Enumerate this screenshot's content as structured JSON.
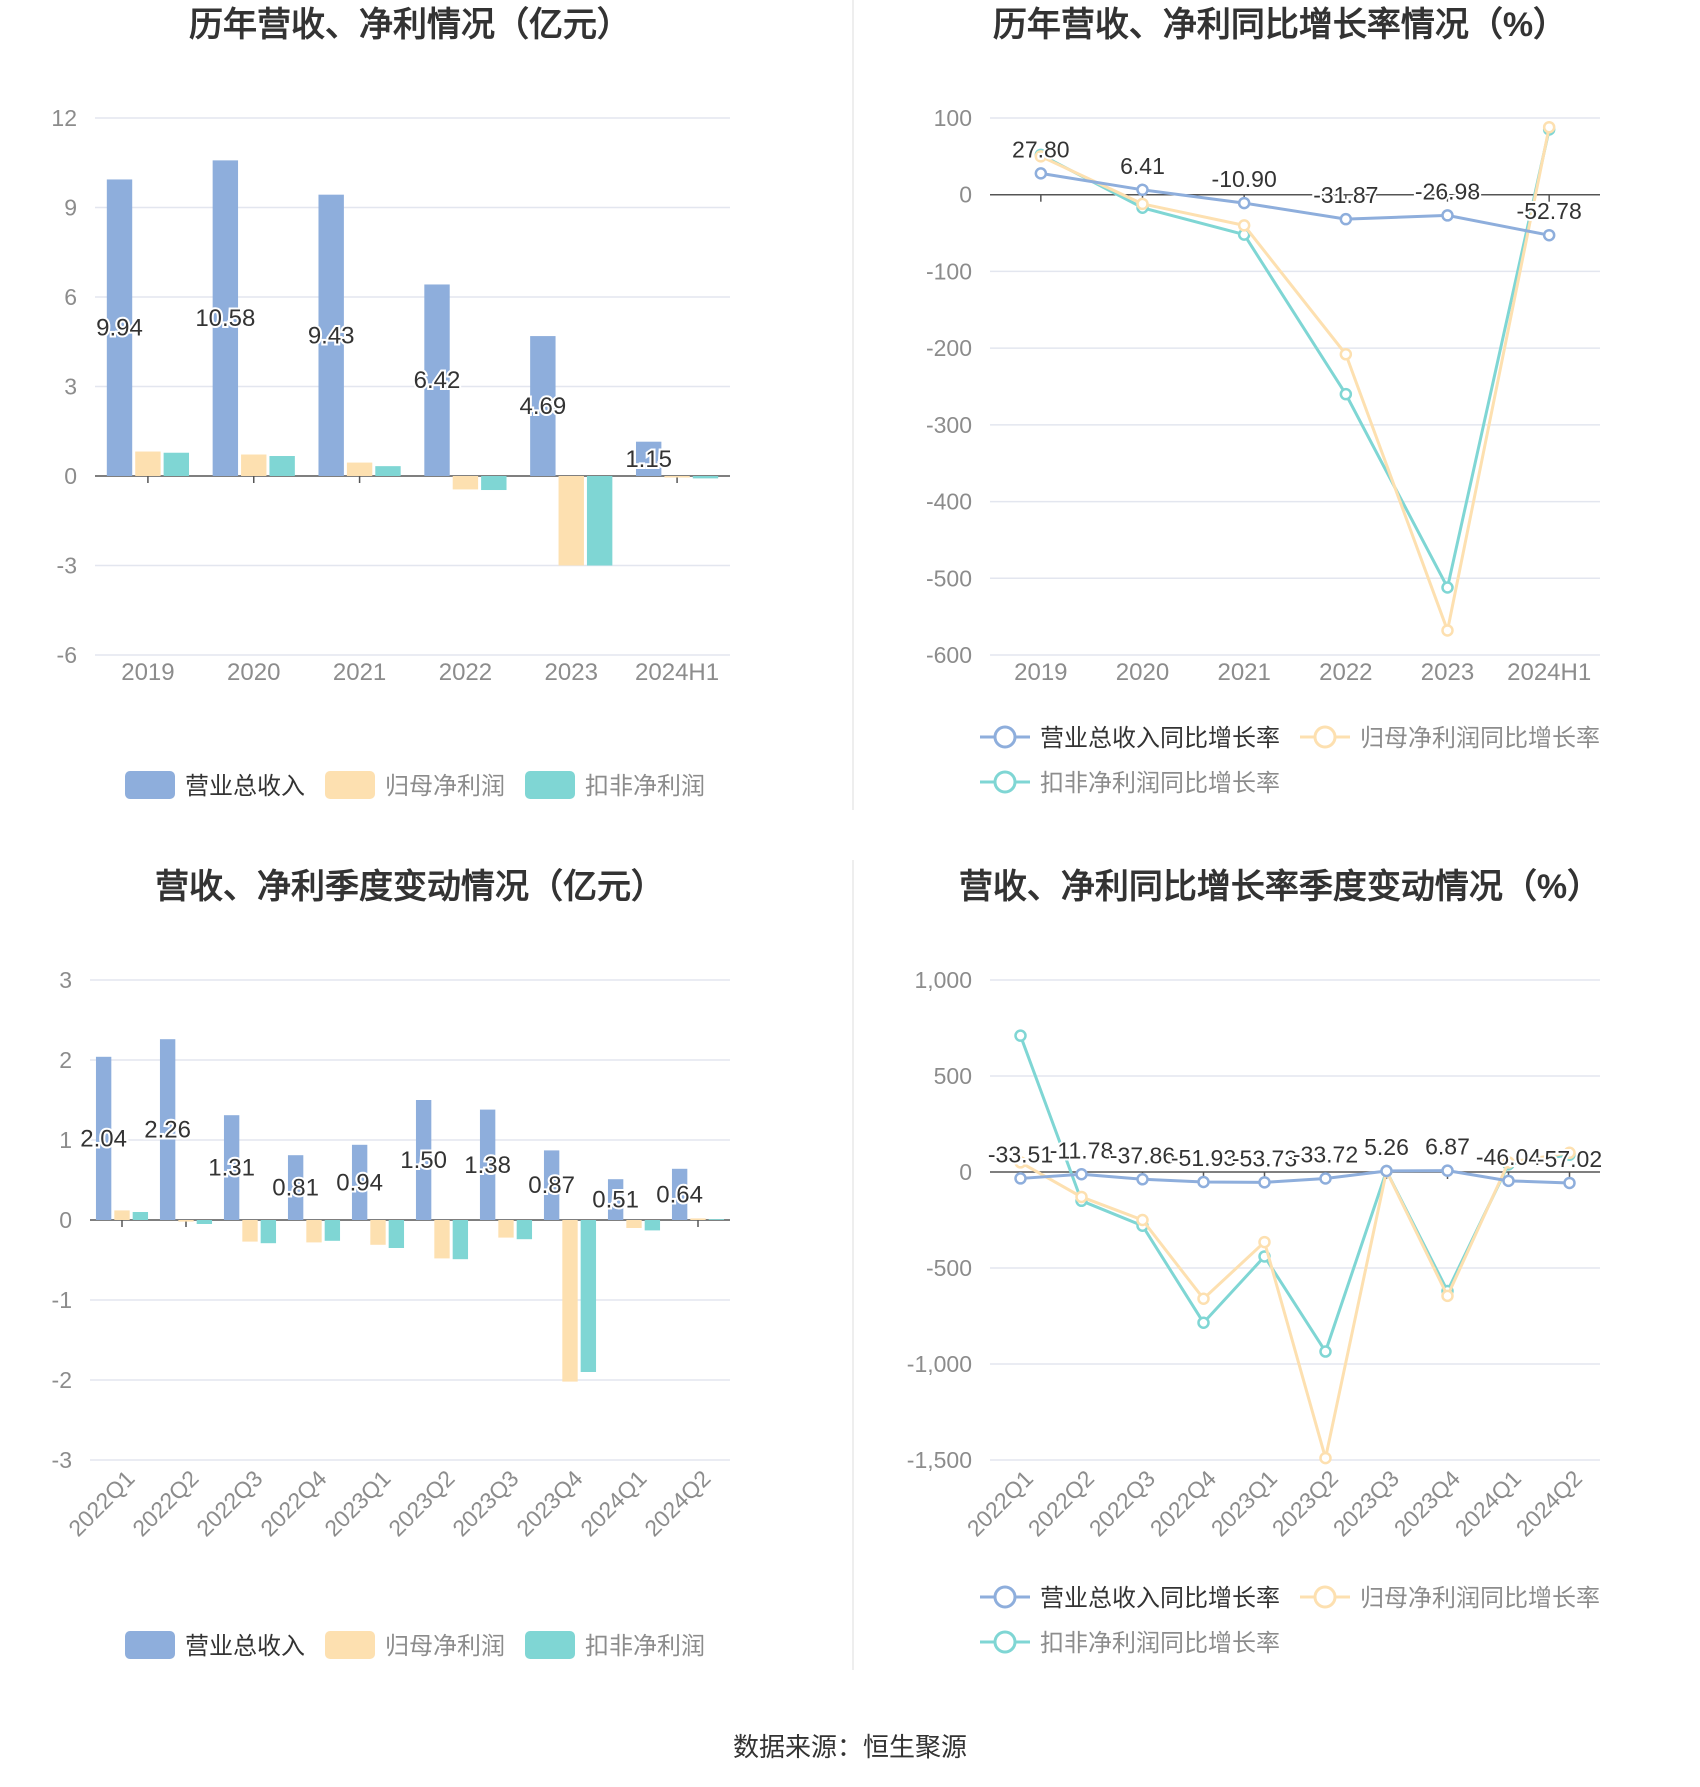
{
  "source_text": "数据来源：恒生聚源",
  "colors": {
    "revenue": "#8eaedc",
    "net_profit": "#fde0b0",
    "deducted": "#7fd6d4",
    "grid": "#e3e6ef",
    "axis": "#555555",
    "label": "#8c8c8c",
    "title": "#333333"
  },
  "chart_data": [
    {
      "type": "bar",
      "title": "历年营收、净利情况（亿元）",
      "categories": [
        "2019",
        "2020",
        "2021",
        "2022",
        "2023",
        "2024H1"
      ],
      "yticks": [
        "12",
        "9",
        "6",
        "3",
        "0",
        "-3",
        "-6"
      ],
      "ylim": [
        -6,
        12
      ],
      "series": [
        {
          "name": "营业总收入",
          "values": [
            9.94,
            10.58,
            9.43,
            6.42,
            4.69,
            1.15
          ],
          "labels": [
            "9.94",
            "10.58",
            "9.43",
            "6.42",
            "4.69",
            "1.15"
          ]
        },
        {
          "name": "归母净利润",
          "values": [
            0.82,
            0.72,
            0.45,
            -0.45,
            -3.0,
            -0.05
          ]
        },
        {
          "name": "扣非净利润",
          "values": [
            0.78,
            0.67,
            0.33,
            -0.47,
            -3.0,
            -0.08
          ]
        }
      ],
      "legend": "bottom"
    },
    {
      "type": "line",
      "title": "历年营收、净利同比增长率情况（%）",
      "categories": [
        "2019",
        "2020",
        "2021",
        "2022",
        "2023",
        "2024H1"
      ],
      "yticks": [
        "100",
        "0",
        "-100",
        "-200",
        "-300",
        "-400",
        "-500",
        "-600"
      ],
      "ylim": [
        -600,
        100
      ],
      "series": [
        {
          "name": "营业总收入同比增长率",
          "values": [
            27.8,
            6.41,
            -10.9,
            -31.87,
            -26.98,
            -52.78
          ],
          "labels": [
            "27.80",
            "6.41",
            "-10.90",
            "-31.87",
            "-26.98",
            "-52.78"
          ]
        },
        {
          "name": "归母净利润同比增长率",
          "values": [
            50,
            -12,
            -40,
            -208,
            -568,
            88
          ]
        },
        {
          "name": "扣非净利润同比增长率",
          "values": [
            52,
            -17,
            -52,
            -260,
            -512,
            85
          ]
        }
      ],
      "legend": "bottom"
    },
    {
      "type": "bar",
      "title": "营收、净利季度变动情况（亿元）",
      "categories": [
        "2022Q1",
        "2022Q2",
        "2022Q3",
        "2022Q4",
        "2023Q1",
        "2023Q2",
        "2023Q3",
        "2023Q4",
        "2024Q1",
        "2024Q2"
      ],
      "yticks": [
        "3",
        "2",
        "1",
        "0",
        "-1",
        "-2",
        "-3"
      ],
      "ylim": [
        -3,
        3
      ],
      "series": [
        {
          "name": "营业总收入",
          "values": [
            2.04,
            2.26,
            1.31,
            0.81,
            0.94,
            1.5,
            1.38,
            0.87,
            0.51,
            0.64
          ],
          "labels": [
            "2.04",
            "2.26",
            "1.31",
            "0.81",
            "0.94",
            "1.50",
            "1.38",
            "0.87",
            "0.51",
            "0.64"
          ]
        },
        {
          "name": "归母净利润",
          "values": [
            0.12,
            -0.02,
            -0.27,
            -0.28,
            -0.31,
            -0.48,
            -0.22,
            -2.02,
            -0.1,
            0.02
          ]
        },
        {
          "name": "扣非净利润",
          "values": [
            0.1,
            -0.05,
            -0.29,
            -0.26,
            -0.35,
            -0.49,
            -0.24,
            -1.9,
            -0.13,
            0.01
          ]
        }
      ],
      "legend": "bottom"
    },
    {
      "type": "line",
      "title": "营收、净利同比增长率季度变动情况（%）",
      "categories": [
        "2022Q1",
        "2022Q2",
        "2022Q3",
        "2022Q4",
        "2023Q1",
        "2023Q2",
        "2023Q3",
        "2023Q4",
        "2024Q1",
        "2024Q2"
      ],
      "yticks": [
        "1,000",
        "500",
        "0",
        "-500",
        "-1,000",
        "-1,500"
      ],
      "ylim": [
        -1500,
        1000
      ],
      "series": [
        {
          "name": "营业总收入同比增长率",
          "values": [
            -33.51,
            -11.78,
            -37.86,
            -51.93,
            -53.73,
            -33.72,
            5.26,
            6.87,
            -46.04,
            -57.02
          ],
          "labels": [
            "-33.51",
            "-11.78",
            "-37.86",
            "-51.93",
            "-53.73",
            "-33.72",
            "5.26",
            "6.87",
            "-46.04",
            "-57.02"
          ]
        },
        {
          "name": "归母净利润同比增长率",
          "values": [
            50,
            -130,
            -250,
            -660,
            -365,
            -1490,
            5,
            -645,
            50,
            100
          ]
        },
        {
          "name": "扣非净利润同比增长率",
          "values": [
            710,
            -150,
            -280,
            -785,
            -440,
            -935,
            5,
            -620,
            40,
            90
          ]
        }
      ],
      "legend": "bottom"
    }
  ]
}
